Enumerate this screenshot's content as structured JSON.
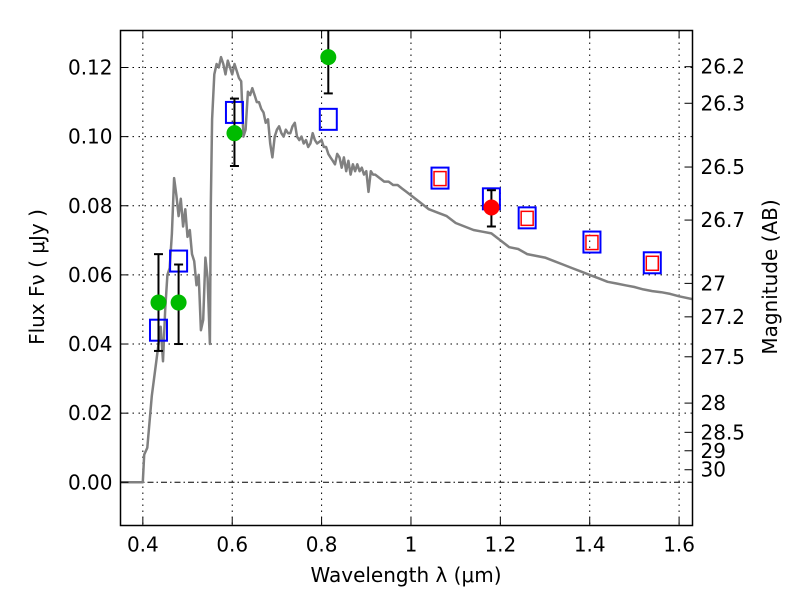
{
  "chart_data": {
    "type": "scatter",
    "title": "",
    "xlabel": "Wavelength  λ (μm)",
    "ylabel": "Flux  Fν  ( μJy )",
    "y2label": "Magnitude (AB)",
    "xlim": [
      0.35,
      1.63
    ],
    "ylim": [
      -0.0125,
      0.1307
    ],
    "grid": true,
    "legend": "none",
    "xticks": [
      {
        "value": 0.4,
        "label": "0.4"
      },
      {
        "value": 0.6,
        "label": "0.6"
      },
      {
        "value": 0.8,
        "label": "0.8"
      },
      {
        "value": 1.0,
        "label": "1"
      },
      {
        "value": 1.2,
        "label": "1.2"
      },
      {
        "value": 1.4,
        "label": "1.4"
      },
      {
        "value": 1.6,
        "label": "1.6"
      }
    ],
    "yticks": [
      {
        "value": 0.0,
        "label": "0.00"
      },
      {
        "value": 0.02,
        "label": "0.02"
      },
      {
        "value": 0.04,
        "label": "0.04"
      },
      {
        "value": 0.06,
        "label": "0.06"
      },
      {
        "value": 0.08,
        "label": "0.08"
      },
      {
        "value": 0.1,
        "label": "0.10"
      },
      {
        "value": 0.12,
        "label": "0.12"
      }
    ],
    "y2ticks": [
      {
        "mag": 26.2,
        "label": "26.2"
      },
      {
        "mag": 26.3,
        "label": "26.3"
      },
      {
        "mag": 26.5,
        "label": "26.5"
      },
      {
        "mag": 26.7,
        "label": "26.7"
      },
      {
        "mag": 27.0,
        "label": "27"
      },
      {
        "mag": 27.2,
        "label": "27.2"
      },
      {
        "mag": 27.5,
        "label": "27.5"
      },
      {
        "mag": 28.0,
        "label": "28"
      },
      {
        "mag": 28.5,
        "label": "28.5"
      },
      {
        "mag": 29.0,
        "label": "29"
      },
      {
        "mag": 30.0,
        "label": "30"
      }
    ],
    "series": [
      {
        "name": "model-spectrum",
        "kind": "line",
        "color": "#808080",
        "points": [
          [
            0.35,
            0.0
          ],
          [
            0.4,
            0.0
          ],
          [
            0.403,
            0.008
          ],
          [
            0.41,
            0.01
          ],
          [
            0.42,
            0.025
          ],
          [
            0.43,
            0.035
          ],
          [
            0.435,
            0.04
          ],
          [
            0.44,
            0.045
          ],
          [
            0.445,
            0.035
          ],
          [
            0.45,
            0.05
          ],
          [
            0.455,
            0.06
          ],
          [
            0.46,
            0.062
          ],
          [
            0.465,
            0.072
          ],
          [
            0.47,
            0.088
          ],
          [
            0.475,
            0.083
          ],
          [
            0.48,
            0.077
          ],
          [
            0.485,
            0.082
          ],
          [
            0.49,
            0.074
          ],
          [
            0.495,
            0.079
          ],
          [
            0.5,
            0.071
          ],
          [
            0.505,
            0.073
          ],
          [
            0.51,
            0.066
          ],
          [
            0.515,
            0.064
          ],
          [
            0.52,
            0.057
          ],
          [
            0.525,
            0.06
          ],
          [
            0.53,
            0.044
          ],
          [
            0.535,
            0.047
          ],
          [
            0.54,
            0.065
          ],
          [
            0.545,
            0.059
          ],
          [
            0.55,
            0.04
          ],
          [
            0.552,
            0.08
          ],
          [
            0.555,
            0.105
          ],
          [
            0.56,
            0.118
          ],
          [
            0.565,
            0.121
          ],
          [
            0.57,
            0.12
          ],
          [
            0.575,
            0.123
          ],
          [
            0.58,
            0.121
          ],
          [
            0.585,
            0.118
          ],
          [
            0.59,
            0.122
          ],
          [
            0.595,
            0.12
          ],
          [
            0.6,
            0.118
          ],
          [
            0.605,
            0.121
          ],
          [
            0.61,
            0.119
          ],
          [
            0.615,
            0.117
          ],
          [
            0.62,
            0.116
          ],
          [
            0.625,
            0.1
          ],
          [
            0.63,
            0.102
          ],
          [
            0.635,
            0.113
          ],
          [
            0.64,
            0.112
          ],
          [
            0.645,
            0.114
          ],
          [
            0.65,
            0.112
          ],
          [
            0.655,
            0.11
          ],
          [
            0.66,
            0.11
          ],
          [
            0.665,
            0.108
          ],
          [
            0.67,
            0.107
          ],
          [
            0.675,
            0.104
          ],
          [
            0.68,
            0.105
          ],
          [
            0.685,
            0.098
          ],
          [
            0.69,
            0.094
          ],
          [
            0.695,
            0.1
          ],
          [
            0.7,
            0.102
          ],
          [
            0.705,
            0.103
          ],
          [
            0.71,
            0.101
          ],
          [
            0.715,
            0.1
          ],
          [
            0.72,
            0.102
          ],
          [
            0.725,
            0.101
          ],
          [
            0.73,
            0.101
          ],
          [
            0.735,
            0.103
          ],
          [
            0.74,
            0.104
          ],
          [
            0.745,
            0.1
          ],
          [
            0.75,
            0.099
          ],
          [
            0.755,
            0.1
          ],
          [
            0.76,
            0.098
          ],
          [
            0.765,
            0.099
          ],
          [
            0.77,
            0.097
          ],
          [
            0.775,
            0.098
          ],
          [
            0.78,
            0.101
          ],
          [
            0.785,
            0.099
          ],
          [
            0.79,
            0.098
          ],
          [
            0.8,
            0.099
          ],
          [
            0.805,
            0.097
          ],
          [
            0.81,
            0.097
          ],
          [
            0.815,
            0.095
          ],
          [
            0.82,
            0.094
          ],
          [
            0.825,
            0.093
          ],
          [
            0.83,
            0.092
          ],
          [
            0.835,
            0.095
          ],
          [
            0.84,
            0.094
          ],
          [
            0.845,
            0.091
          ],
          [
            0.85,
            0.094
          ],
          [
            0.855,
            0.09
          ],
          [
            0.86,
            0.093
          ],
          [
            0.865,
            0.089
          ],
          [
            0.87,
            0.092
          ],
          [
            0.875,
            0.09
          ],
          [
            0.88,
            0.092
          ],
          [
            0.885,
            0.09
          ],
          [
            0.89,
            0.091
          ],
          [
            0.895,
            0.089
          ],
          [
            0.9,
            0.09
          ],
          [
            0.905,
            0.084
          ],
          [
            0.91,
            0.09
          ],
          [
            0.915,
            0.089
          ],
          [
            0.92,
            0.089
          ],
          [
            0.93,
            0.088
          ],
          [
            0.94,
            0.087
          ],
          [
            0.95,
            0.087
          ],
          [
            0.96,
            0.086
          ],
          [
            0.97,
            0.086
          ],
          [
            0.98,
            0.085
          ],
          [
            0.99,
            0.084
          ],
          [
            1.0,
            0.083
          ],
          [
            1.02,
            0.081
          ],
          [
            1.04,
            0.079
          ],
          [
            1.06,
            0.078
          ],
          [
            1.08,
            0.077
          ],
          [
            1.1,
            0.075
          ],
          [
            1.12,
            0.074
          ],
          [
            1.14,
            0.073
          ],
          [
            1.16,
            0.0725
          ],
          [
            1.18,
            0.072
          ],
          [
            1.2,
            0.07
          ],
          [
            1.22,
            0.068
          ],
          [
            1.24,
            0.0675
          ],
          [
            1.26,
            0.066
          ],
          [
            1.28,
            0.0655
          ],
          [
            1.3,
            0.065
          ],
          [
            1.32,
            0.064
          ],
          [
            1.34,
            0.063
          ],
          [
            1.36,
            0.062
          ],
          [
            1.38,
            0.061
          ],
          [
            1.4,
            0.06
          ],
          [
            1.42,
            0.059
          ],
          [
            1.44,
            0.058
          ],
          [
            1.46,
            0.0575
          ],
          [
            1.48,
            0.057
          ],
          [
            1.5,
            0.0565
          ],
          [
            1.52,
            0.0558
          ],
          [
            1.54,
            0.0553
          ],
          [
            1.56,
            0.055
          ],
          [
            1.58,
            0.0545
          ],
          [
            1.6,
            0.0538
          ],
          [
            1.63,
            0.053
          ]
        ]
      },
      {
        "name": "model-photometry",
        "kind": "square",
        "color": "#0000ff",
        "points": [
          {
            "x": 0.435,
            "y": 0.044
          },
          {
            "x": 0.48,
            "y": 0.064
          },
          {
            "x": 0.605,
            "y": 0.107
          },
          {
            "x": 0.815,
            "y": 0.105
          },
          {
            "x": 1.065,
            "y": 0.088
          },
          {
            "x": 1.18,
            "y": 0.082
          },
          {
            "x": 1.26,
            "y": 0.0765
          },
          {
            "x": 1.405,
            "y": 0.0695
          },
          {
            "x": 1.54,
            "y": 0.0635
          }
        ]
      },
      {
        "name": "observed-photometry-inner",
        "kind": "square-small",
        "color": "#ff0000",
        "points": [
          {
            "x": 1.065,
            "y": 0.088
          },
          {
            "x": 1.26,
            "y": 0.0765
          },
          {
            "x": 1.405,
            "y": 0.0695
          },
          {
            "x": 1.54,
            "y": 0.0635
          }
        ]
      },
      {
        "name": "ground-photometry",
        "kind": "circle",
        "color": "#00bb00",
        "points": [
          {
            "x": 0.435,
            "y": 0.052,
            "yerr_low": 0.038,
            "yerr_high": 0.066
          },
          {
            "x": 0.48,
            "y": 0.052,
            "yerr_low": 0.04,
            "yerr_high": 0.063
          },
          {
            "x": 0.605,
            "y": 0.101,
            "yerr_low": 0.0915,
            "yerr_high": 0.111
          },
          {
            "x": 0.815,
            "y": 0.123,
            "yerr_low": 0.1125,
            "yerr_high": 0.134
          }
        ]
      },
      {
        "name": "space-photometry",
        "kind": "circle",
        "color": "#ff0000",
        "points": [
          {
            "x": 1.18,
            "y": 0.0795,
            "yerr_low": 0.074,
            "yerr_high": 0.0845
          }
        ]
      }
    ]
  }
}
